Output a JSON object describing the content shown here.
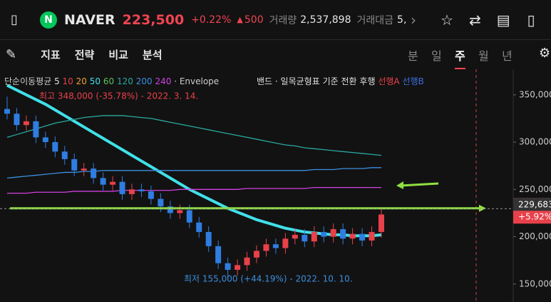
{
  "header": {
    "name": "NAVER",
    "price": "223,500",
    "change_pct": "+0.22%",
    "change": "500",
    "volume_label": "거래량",
    "volume": "2,537,898",
    "amount_label": "거래대금",
    "amount": "5,"
  },
  "toolbar": {
    "tools": [
      "지표",
      "전략",
      "비교",
      "분석"
    ],
    "periods": [
      "분",
      "일",
      "주",
      "월",
      "년"
    ],
    "active_period": 2
  },
  "chart_data": {
    "type": "candlestick",
    "legend_prefix": "단순이동평균",
    "legend_items": [
      {
        "label": "5",
        "color": "#e0e0e0"
      },
      {
        "label": "10",
        "color": "#e8414a"
      },
      {
        "label": "20",
        "color": "#f0a030"
      },
      {
        "label": "50",
        "color": "#41e0e8"
      },
      {
        "label": "60",
        "color": "#5fbf5f"
      },
      {
        "label": "120",
        "color": "#2aa8a0"
      },
      {
        "label": "200",
        "color": "#3b8fe0"
      },
      {
        "label": "240",
        "color": "#d040e0"
      }
    ],
    "legend_suffix": "· Envelope",
    "legend_line2": [
      {
        "label": "밴드 · 일목균형표",
        "color": "#e0e0e0"
      },
      {
        "label": "기준",
        "color": "#e0e0e0"
      },
      {
        "label": "전환",
        "color": "#e0e0e0"
      },
      {
        "label": "후행",
        "color": "#e0e0e0"
      },
      {
        "label": "선행A",
        "color": "#e8414a"
      },
      {
        "label": "선행B",
        "color": "#3b6fe0"
      }
    ],
    "high_note": "최고 348,000 (-35.78%) - 2022. 3. 14.",
    "low_note": "최저 155,000 (+44.19%) - 2022. 10. 10.",
    "up_color": "#e8414a",
    "down_color": "#2f7de1",
    "open": [
      335000,
      330000,
      318000,
      322000,
      305000,
      300000,
      290000,
      282000,
      270000,
      272000,
      262000,
      255000,
      258000,
      245000,
      250000,
      248000,
      240000,
      232000,
      225000,
      228000,
      215000,
      205000,
      190000,
      172000,
      165000,
      170000,
      178000,
      185000,
      192000,
      188000,
      198000,
      202000,
      195000,
      205000,
      200000,
      208000,
      198000,
      203000,
      196000,
      205000
    ],
    "high": [
      348000,
      336000,
      328000,
      328000,
      311000,
      306000,
      296000,
      288000,
      278000,
      278000,
      268000,
      264000,
      264000,
      256000,
      256000,
      254000,
      246000,
      238000,
      234000,
      234000,
      221000,
      211000,
      196000,
      178000,
      176000,
      184000,
      191000,
      198000,
      198000,
      204000,
      208000,
      208000,
      211000,
      211000,
      214000,
      214000,
      209000,
      209000,
      211000,
      229500
    ],
    "low": [
      324000,
      312000,
      312000,
      299000,
      294000,
      284000,
      276000,
      264000,
      264000,
      256000,
      249000,
      249000,
      239000,
      239000,
      242000,
      234000,
      226000,
      219000,
      219000,
      209000,
      199000,
      184000,
      166000,
      155000,
      159000,
      164000,
      172000,
      179000,
      182000,
      182000,
      192000,
      189000,
      189000,
      194000,
      194000,
      192000,
      192000,
      190000,
      190000,
      199000
    ],
    "close": [
      330000,
      318000,
      322000,
      305000,
      300000,
      290000,
      282000,
      270000,
      272000,
      262000,
      255000,
      258000,
      245000,
      250000,
      248000,
      240000,
      232000,
      225000,
      228000,
      215000,
      205000,
      190000,
      172000,
      165000,
      170000,
      178000,
      185000,
      192000,
      188000,
      198000,
      202000,
      195000,
      205000,
      200000,
      208000,
      198000,
      203000,
      196000,
      205000,
      223500
    ],
    "lines": [
      {
        "color": "#41e0e8",
        "width": 4,
        "values": [
          360000,
          355000,
          350000,
          345000,
          340000,
          334000,
          328000,
          322000,
          316000,
          310000,
          304000,
          298000,
          292000,
          286000,
          280000,
          274000,
          268000,
          262000,
          256000,
          250000,
          245000,
          240000,
          235000,
          230000,
          226000,
          222000,
          218000,
          215000,
          212000,
          209000,
          207000,
          205000,
          204000,
          203000,
          202000,
          202000,
          201000,
          201000,
          201000,
          202000
        ]
      },
      {
        "color": "#2aa8a0",
        "width": 1.3,
        "values": [
          305000,
          308000,
          311000,
          314000,
          317000,
          320000,
          322000,
          324000,
          326000,
          327000,
          328000,
          328000,
          328000,
          327000,
          326000,
          325000,
          323000,
          321000,
          319000,
          317000,
          315000,
          313000,
          311000,
          309000,
          307000,
          305000,
          303000,
          301000,
          299000,
          297000,
          296000,
          294000,
          293000,
          292000,
          291000,
          290000,
          289000,
          288000,
          287000,
          286000
        ]
      },
      {
        "color": "#3b8fe0",
        "width": 1.3,
        "values": [
          262000,
          263000,
          264000,
          265000,
          266000,
          267000,
          268000,
          268000,
          269000,
          269000,
          270000,
          270000,
          270000,
          270000,
          270000,
          270000,
          270000,
          270000,
          270000,
          270000,
          270000,
          270000,
          270000,
          270000,
          270000,
          270000,
          270000,
          270000,
          270000,
          270000,
          270000,
          270000,
          271000,
          271000,
          271000,
          272000,
          272000,
          272000,
          273000,
          273000
        ]
      },
      {
        "color": "#d040e0",
        "width": 1.3,
        "values": [
          246000,
          246000,
          246000,
          247000,
          247000,
          247000,
          247000,
          248000,
          248000,
          248000,
          248000,
          248000,
          249000,
          249000,
          249000,
          249000,
          249000,
          249000,
          250000,
          250000,
          250000,
          250000,
          250000,
          250000,
          250000,
          251000,
          251000,
          251000,
          251000,
          251000,
          251000,
          251000,
          252000,
          252000,
          252000,
          252000,
          252000,
          252000,
          252000,
          252000
        ]
      }
    ],
    "guide_value": 230000,
    "guide_color": "#8fe040",
    "last_value": {
      "value": 229683,
      "label": "229,683"
    },
    "last_change": "+5.92%",
    "ylim": [
      131000,
      377000
    ],
    "yticks": [
      {
        "value": 150000,
        "label": "150,000"
      },
      {
        "value": 200000,
        "label": "200,000"
      },
      {
        "value": 250000,
        "label": "250,000"
      },
      {
        "value": 300000,
        "label": "300,000"
      },
      {
        "value": 350000,
        "label": "350,000"
      }
    ]
  }
}
